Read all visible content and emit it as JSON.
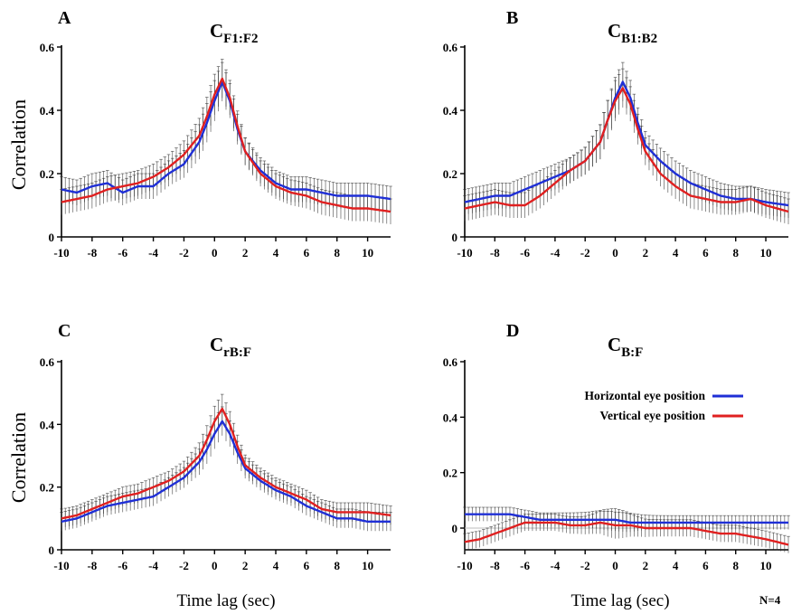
{
  "colors": {
    "horizontal": "#1f2fd6",
    "vertical": "#e02020",
    "errorbar": "#2a2a2a",
    "axis": "#000000",
    "zero_line": "#bdbdbd"
  },
  "legend": {
    "entries": [
      {
        "label": "Horizontal eye position",
        "color": "#1f2fd6"
      },
      {
        "label": "Vertical eye position",
        "color": "#e02020"
      }
    ],
    "placement": "top-right of panel D"
  },
  "footer_note": "N=4",
  "chart_data": [
    {
      "id": "A",
      "type": "line",
      "panel_letter": "A",
      "title_main": "C",
      "title_sub": "F1:F2",
      "ylabel": "Correlation",
      "xlabel": "",
      "xlim": [
        -10,
        11.5
      ],
      "ylim": [
        0,
        0.6
      ],
      "xticks": [
        "-10",
        "-8",
        "-6",
        "-4",
        "-2",
        "0",
        "2",
        "4",
        "6",
        "8",
        "10"
      ],
      "yticks": [
        "0",
        "0.2",
        "0.4",
        "0.6"
      ],
      "series": [
        {
          "name": "Horizontal eye position",
          "err": 0.04,
          "x": [
            -10,
            -9,
            -8,
            -7,
            -6,
            -5,
            -4,
            -3,
            -2,
            -1,
            -0.5,
            0,
            0.5,
            1,
            1.5,
            2,
            3,
            4,
            5,
            6,
            7,
            8,
            9,
            10,
            11.5
          ],
          "y": [
            0.15,
            0.14,
            0.16,
            0.17,
            0.14,
            0.16,
            0.16,
            0.2,
            0.23,
            0.3,
            0.36,
            0.43,
            0.49,
            0.43,
            0.34,
            0.27,
            0.21,
            0.17,
            0.15,
            0.15,
            0.14,
            0.13,
            0.13,
            0.13,
            0.12
          ]
        },
        {
          "name": "Vertical eye position",
          "err": 0.04,
          "x": [
            -10,
            -9,
            -8,
            -7,
            -6,
            -5,
            -4,
            -3,
            -2,
            -1,
            -0.5,
            0,
            0.5,
            1,
            1.5,
            2,
            3,
            4,
            5,
            6,
            7,
            8,
            9,
            10,
            11.5
          ],
          "y": [
            0.11,
            0.12,
            0.13,
            0.15,
            0.16,
            0.17,
            0.19,
            0.22,
            0.26,
            0.32,
            0.38,
            0.45,
            0.5,
            0.44,
            0.35,
            0.27,
            0.2,
            0.16,
            0.14,
            0.13,
            0.11,
            0.1,
            0.09,
            0.09,
            0.08
          ]
        }
      ]
    },
    {
      "id": "B",
      "type": "line",
      "panel_letter": "B",
      "title_main": "C",
      "title_sub": "B1:B2",
      "ylabel": "",
      "xlabel": "",
      "xlim": [
        -10,
        11.5
      ],
      "ylim": [
        0,
        0.6
      ],
      "xticks": [
        "-10",
        "-8",
        "-6",
        "-4",
        "-2",
        "0",
        "2",
        "4",
        "6",
        "8",
        "10"
      ],
      "yticks": [
        "0",
        "0.2",
        "0.4",
        "0.6"
      ],
      "series": [
        {
          "name": "Horizontal eye position",
          "err": 0.04,
          "x": [
            -10,
            -9,
            -8,
            -7,
            -6,
            -5,
            -4,
            -3,
            -2,
            -1,
            -0.5,
            0,
            0.5,
            1,
            1.5,
            2,
            3,
            4,
            5,
            6,
            7,
            8,
            9,
            10,
            11.5
          ],
          "y": [
            0.11,
            0.12,
            0.13,
            0.13,
            0.15,
            0.17,
            0.19,
            0.21,
            0.24,
            0.3,
            0.37,
            0.44,
            0.49,
            0.44,
            0.36,
            0.29,
            0.24,
            0.2,
            0.17,
            0.15,
            0.13,
            0.12,
            0.12,
            0.11,
            0.1
          ]
        },
        {
          "name": "Vertical eye position",
          "err": 0.04,
          "x": [
            -10,
            -9,
            -8,
            -7,
            -6,
            -5,
            -4,
            -3,
            -2,
            -1,
            -0.5,
            0,
            0.5,
            1,
            1.5,
            2,
            3,
            4,
            5,
            6,
            7,
            8,
            9,
            10,
            11.5
          ],
          "y": [
            0.09,
            0.1,
            0.11,
            0.1,
            0.1,
            0.13,
            0.17,
            0.21,
            0.24,
            0.3,
            0.37,
            0.43,
            0.47,
            0.42,
            0.34,
            0.27,
            0.2,
            0.16,
            0.13,
            0.12,
            0.11,
            0.11,
            0.12,
            0.1,
            0.08
          ]
        }
      ]
    },
    {
      "id": "C",
      "type": "line",
      "panel_letter": "C",
      "title_main": "C",
      "title_sub": "rB:F",
      "ylabel": "Correlation",
      "xlabel": "Time lag (sec)",
      "xlim": [
        -10,
        11.5
      ],
      "ylim": [
        0,
        0.6
      ],
      "xticks": [
        "-10",
        "-8",
        "-6",
        "-4",
        "-2",
        "0",
        "2",
        "4",
        "6",
        "8",
        "10"
      ],
      "yticks": [
        "0",
        "0.2",
        "0.4",
        "0.6"
      ],
      "series": [
        {
          "name": "Horizontal eye position",
          "err": 0.03,
          "x": [
            -10,
            -9,
            -8,
            -7,
            -6,
            -5,
            -4,
            -3,
            -2,
            -1,
            -0.5,
            0,
            0.5,
            1,
            1.5,
            2,
            3,
            4,
            5,
            6,
            7,
            8,
            9,
            10,
            11.5
          ],
          "y": [
            0.09,
            0.1,
            0.12,
            0.14,
            0.15,
            0.16,
            0.17,
            0.2,
            0.23,
            0.28,
            0.32,
            0.37,
            0.41,
            0.37,
            0.31,
            0.26,
            0.22,
            0.19,
            0.17,
            0.14,
            0.12,
            0.1,
            0.1,
            0.09,
            0.09
          ]
        },
        {
          "name": "Vertical eye position",
          "err": 0.03,
          "x": [
            -10,
            -9,
            -8,
            -7,
            -6,
            -5,
            -4,
            -3,
            -2,
            -1,
            -0.5,
            0,
            0.5,
            1,
            1.5,
            2,
            3,
            4,
            5,
            6,
            7,
            8,
            9,
            10,
            11.5
          ],
          "y": [
            0.1,
            0.11,
            0.13,
            0.15,
            0.17,
            0.18,
            0.2,
            0.22,
            0.25,
            0.3,
            0.35,
            0.41,
            0.45,
            0.4,
            0.33,
            0.27,
            0.23,
            0.2,
            0.18,
            0.16,
            0.13,
            0.12,
            0.12,
            0.12,
            0.11
          ]
        }
      ]
    },
    {
      "id": "D",
      "type": "line",
      "panel_letter": "D",
      "title_main": "C",
      "title_sub": "B:F",
      "ylabel": "",
      "xlabel": "Time lag (sec)",
      "xlim": [
        -10,
        11.5
      ],
      "ylim": [
        -0.1,
        0.6
      ],
      "xticks": [
        "-10",
        "-8",
        "-6",
        "-4",
        "-2",
        "0",
        "2",
        "4",
        "6",
        "8",
        "10"
      ],
      "yticks": [
        "0",
        "0.2",
        "0.4",
        "0.6"
      ],
      "zero_line": true,
      "series": [
        {
          "name": "Horizontal eye position",
          "err": 0.025,
          "x": [
            -10,
            -9,
            -8,
            -7,
            -6,
            -5,
            -4,
            -3,
            -2,
            -1,
            0,
            1,
            2,
            3,
            4,
            5,
            6,
            7,
            8,
            9,
            10,
            11.5
          ],
          "y": [
            0.05,
            0.05,
            0.05,
            0.05,
            0.04,
            0.03,
            0.03,
            0.03,
            0.03,
            0.03,
            0.03,
            0.02,
            0.02,
            0.02,
            0.02,
            0.02,
            0.02,
            0.02,
            0.02,
            0.02,
            0.02,
            0.02
          ]
        },
        {
          "name": "Vertical eye position",
          "err": 0.03,
          "x": [
            -10,
            -9,
            -8,
            -7,
            -6,
            -5,
            -4,
            -3,
            -2,
            -1,
            0,
            1,
            2,
            3,
            4,
            5,
            6,
            7,
            8,
            9,
            10,
            11.5
          ],
          "y": [
            -0.05,
            -0.04,
            -0.02,
            0.0,
            0.02,
            0.02,
            0.02,
            0.01,
            0.01,
            0.02,
            0.01,
            0.01,
            0.0,
            0.0,
            0.0,
            0.0,
            -0.01,
            -0.02,
            -0.02,
            -0.03,
            -0.04,
            -0.06
          ]
        }
      ]
    }
  ]
}
